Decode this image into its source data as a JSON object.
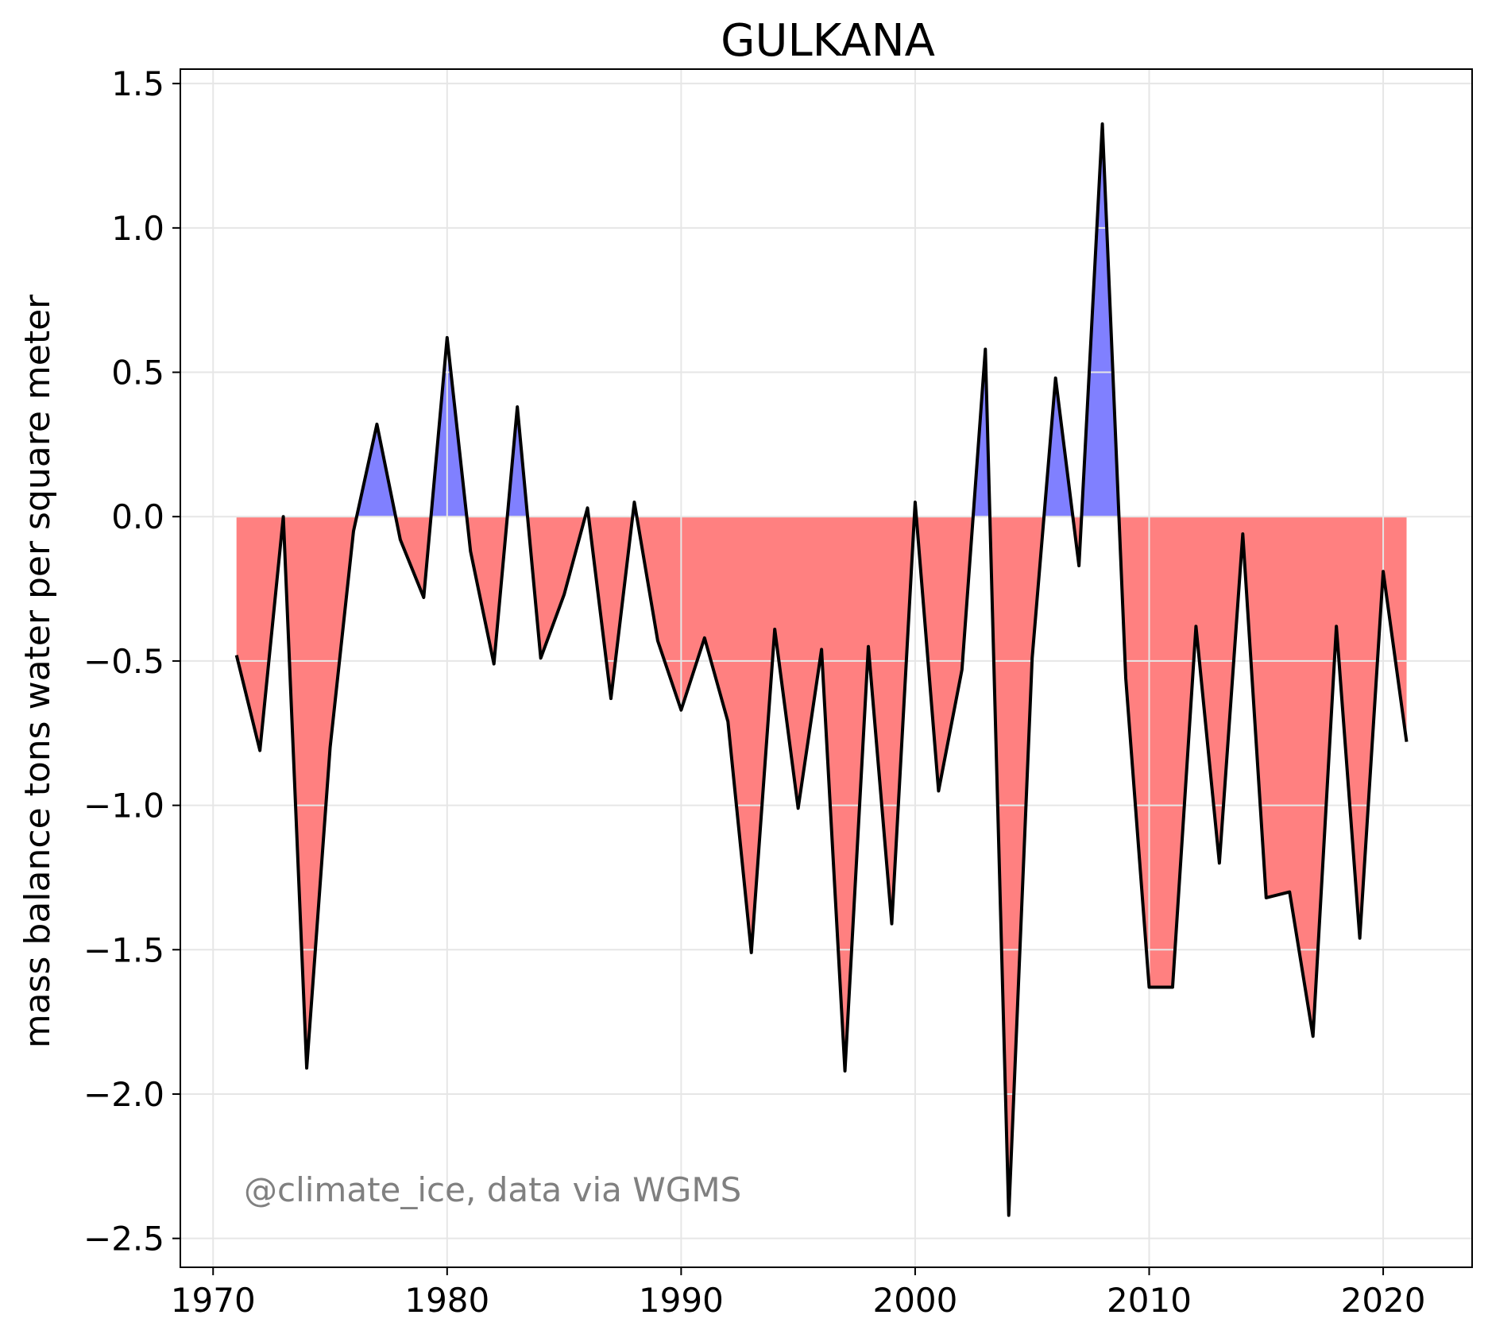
{
  "chart_data": {
    "type": "area",
    "title": "GULKANA",
    "xlabel": "",
    "ylabel": "mass balance tons water per square meter",
    "xlim": [
      1968.6,
      2023.8
    ],
    "ylim": [
      -2.6,
      1.55
    ],
    "xticks": [
      1970,
      1980,
      1990,
      2000,
      2010,
      2020
    ],
    "yticks": [
      1.5,
      1.0,
      0.5,
      0.0,
      -0.5,
      -1.0,
      -1.5,
      -2.0,
      -2.5
    ],
    "ytick_labels": [
      "1.5",
      "1.0",
      "0.5",
      "0.0",
      "−0.5",
      "−1.0",
      "−1.5",
      "−2.0",
      "−2.5"
    ],
    "grid": true,
    "annotation": "@climate_ice, data via WGMS",
    "colors": {
      "positive_fill": "#8080ff",
      "negative_fill": "#ff8080",
      "line": "#000000",
      "grid": "#e6e6e6",
      "annotation": "#808080"
    },
    "series": [
      {
        "x": [
          1971,
          1972,
          1973,
          1974,
          1975,
          1976,
          1977,
          1978,
          1979,
          1980,
          1981,
          1982,
          1983,
          1984,
          1985,
          1986,
          1987,
          1988,
          1989,
          1990,
          1991,
          1992,
          1993,
          1994,
          1995,
          1996,
          1997,
          1998,
          1999,
          2000,
          2001,
          2002,
          2003,
          2004,
          2005,
          2006,
          2007,
          2008,
          2009,
          2010,
          2011,
          2012,
          2013,
          2014,
          2015,
          2016,
          2017,
          2018,
          2019,
          2020,
          2021
        ],
        "values": [
          -0.48,
          -0.81,
          0.0,
          -1.91,
          -0.8,
          -0.05,
          0.32,
          -0.08,
          -0.28,
          0.62,
          -0.12,
          -0.51,
          0.38,
          -0.49,
          -0.27,
          0.03,
          -0.63,
          0.05,
          -0.43,
          -0.67,
          -0.42,
          -0.71,
          -1.51,
          -0.39,
          -1.01,
          -0.46,
          -1.92,
          -0.45,
          -1.41,
          0.05,
          -0.95,
          -0.53,
          0.58,
          -2.42,
          -0.49,
          0.48,
          -0.17,
          1.36,
          -0.56,
          -1.63,
          -1.63,
          -0.38,
          -1.2,
          -0.06,
          -1.32,
          -1.3,
          -1.8,
          -0.38,
          -1.46,
          -0.19,
          -0.78
        ]
      }
    ]
  }
}
